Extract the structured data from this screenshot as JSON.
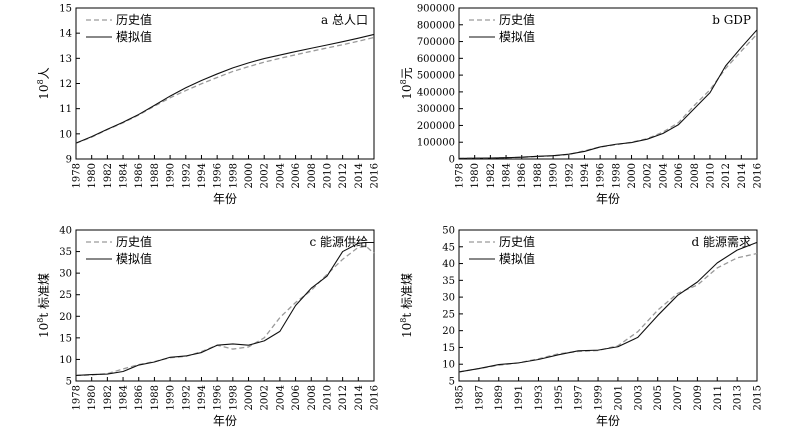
{
  "chart_data": [
    {
      "id": "a",
      "type": "line",
      "title": "a 总人口",
      "xlabel": "年份",
      "ylabel_base": "10",
      "ylabel_sup": "8",
      "ylabel_unit": "人",
      "xlim": [
        1978,
        2016
      ],
      "ylim": [
        9,
        15
      ],
      "xticks": [
        "1978",
        "1980",
        "1982",
        "1984",
        "1986",
        "1988",
        "1990",
        "1992",
        "1994",
        "1996",
        "1998",
        "2000",
        "2002",
        "2004",
        "2006",
        "2008",
        "2010",
        "2012",
        "2014",
        "2016"
      ],
      "yticks": [
        "9",
        "10",
        "11",
        "12",
        "13",
        "14",
        "15"
      ],
      "legend": [
        "历史值",
        "模拟值"
      ],
      "series": [
        {
          "name": "历史值",
          "style": "dashed",
          "x": [
            1978,
            1980,
            1982,
            1984,
            1986,
            1988,
            1990,
            1992,
            1994,
            1996,
            1998,
            2000,
            2002,
            2004,
            2006,
            2008,
            2010,
            2012,
            2014,
            2016
          ],
          "values": [
            9.63,
            9.87,
            10.17,
            10.44,
            10.75,
            11.1,
            11.43,
            11.72,
            11.99,
            12.24,
            12.48,
            12.67,
            12.85,
            13.0,
            13.14,
            13.28,
            13.41,
            13.54,
            13.68,
            13.83
          ]
        },
        {
          "name": "模拟值",
          "style": "solid",
          "x": [
            1978,
            1980,
            1982,
            1984,
            1986,
            1988,
            1990,
            1992,
            1994,
            1996,
            1998,
            2000,
            2002,
            2004,
            2006,
            2008,
            2010,
            2012,
            2014,
            2016
          ],
          "values": [
            9.63,
            9.89,
            10.18,
            10.46,
            10.77,
            11.13,
            11.5,
            11.83,
            12.12,
            12.38,
            12.62,
            12.82,
            12.99,
            13.13,
            13.27,
            13.4,
            13.53,
            13.66,
            13.8,
            13.95
          ]
        }
      ]
    },
    {
      "id": "b",
      "type": "line",
      "title": "b GDP",
      "xlabel": "年份",
      "ylabel_base": "10",
      "ylabel_sup": "8",
      "ylabel_unit": "元",
      "xlim": [
        1978,
        2016
      ],
      "ylim": [
        0,
        900000
      ],
      "xticks": [
        "1978",
        "1980",
        "1982",
        "1984",
        "1986",
        "1988",
        "1990",
        "1992",
        "1994",
        "1996",
        "1998",
        "2000",
        "2002",
        "2004",
        "2006",
        "2008",
        "2010",
        "2012",
        "2014",
        "2016"
      ],
      "yticks": [
        "0",
        "100000",
        "200000",
        "300000",
        "400000",
        "500000",
        "600000",
        "700000",
        "800000",
        "900000"
      ],
      "legend": [
        "历史值",
        "模拟值"
      ],
      "series": [
        {
          "name": "历史值",
          "style": "dashed",
          "x": [
            1978,
            1980,
            1982,
            1984,
            1986,
            1988,
            1990,
            1992,
            1994,
            1996,
            1998,
            2000,
            2002,
            2004,
            2006,
            2008,
            2010,
            2012,
            2014,
            2016
          ],
          "values": [
            3650,
            4550,
            5350,
            7200,
            10300,
            15100,
            18800,
            27200,
            48600,
            71800,
            85000,
            100000,
            121000,
            160000,
            217000,
            319000,
            412000,
            540000,
            643000,
            745000
          ]
        },
        {
          "name": "模拟值",
          "style": "solid",
          "x": [
            1978,
            1980,
            1982,
            1984,
            1986,
            1988,
            1990,
            1992,
            1994,
            1996,
            1998,
            2000,
            2002,
            2004,
            2006,
            2008,
            2010,
            2012,
            2014,
            2016
          ],
          "values": [
            3650,
            4800,
            5800,
            7800,
            11000,
            15800,
            19500,
            28500,
            45000,
            72000,
            88000,
            98000,
            118000,
            152000,
            205000,
            300000,
            395000,
            555000,
            665000,
            770000
          ]
        }
      ]
    },
    {
      "id": "c",
      "type": "line",
      "title": "c 能源供给",
      "xlabel": "年份",
      "ylabel_base": "10",
      "ylabel_sup": "8",
      "ylabel_unit": "t 标准煤",
      "xlim": [
        1978,
        2016
      ],
      "ylim": [
        5,
        40
      ],
      "xticks": [
        "1978",
        "1980",
        "1982",
        "1984",
        "1986",
        "1988",
        "1990",
        "1992",
        "1994",
        "1996",
        "1998",
        "2000",
        "2002",
        "2004",
        "2006",
        "2008",
        "2010",
        "2012",
        "2014",
        "2016"
      ],
      "yticks": [
        "5",
        "10",
        "15",
        "20",
        "25",
        "30",
        "35",
        "40"
      ],
      "legend": [
        "历史值",
        "模拟值"
      ],
      "series": [
        {
          "name": "历史值",
          "style": "dashed",
          "x": [
            1978,
            1980,
            1982,
            1984,
            1986,
            1988,
            1990,
            1992,
            1994,
            1996,
            1998,
            2000,
            2002,
            2004,
            2006,
            2008,
            2010,
            2012,
            2014,
            2015,
            2016
          ],
          "values": [
            6.3,
            6.4,
            6.7,
            7.8,
            8.8,
            9.5,
            10.4,
            10.7,
            11.8,
            13.3,
            12.4,
            12.9,
            15.0,
            19.7,
            23.2,
            26.0,
            29.7,
            33.2,
            36.0,
            36.2,
            34.6
          ]
        },
        {
          "name": "模拟值",
          "style": "solid",
          "x": [
            1978,
            1980,
            1982,
            1984,
            1986,
            1988,
            1990,
            1992,
            1994,
            1996,
            1998,
            2000,
            2002,
            2004,
            2006,
            2008,
            2010,
            2012,
            2014,
            2015,
            2016
          ],
          "values": [
            6.3,
            6.5,
            6.6,
            7.2,
            8.7,
            9.4,
            10.5,
            10.8,
            11.6,
            13.3,
            13.6,
            13.3,
            14.3,
            16.5,
            22.5,
            26.5,
            29.3,
            35.0,
            36.9,
            37.1,
            37.1
          ]
        }
      ]
    },
    {
      "id": "d",
      "type": "line",
      "title": "d 能源需求",
      "xlabel": "年份",
      "ylabel_base": "10",
      "ylabel_sup": "8",
      "ylabel_unit": "t 标准煤",
      "xlim": [
        1985,
        2015
      ],
      "ylim": [
        5,
        50
      ],
      "xticks": [
        "1985",
        "1987",
        "1989",
        "1991",
        "1993",
        "1995",
        "1997",
        "1999",
        "2001",
        "2003",
        "2005",
        "2007",
        "2009",
        "2011",
        "2013",
        "2015"
      ],
      "yticks": [
        "5",
        "10",
        "15",
        "20",
        "25",
        "30",
        "35",
        "40",
        "45",
        "50"
      ],
      "legend": [
        "历史值",
        "模拟值"
      ],
      "series": [
        {
          "name": "历史值",
          "style": "dashed",
          "x": [
            1985,
            1987,
            1989,
            1991,
            1993,
            1995,
            1997,
            1999,
            2001,
            2003,
            2005,
            2007,
            2009,
            2011,
            2013,
            2015
          ],
          "values": [
            7.7,
            8.7,
            9.7,
            10.4,
            11.6,
            13.1,
            13.8,
            14.1,
            15.5,
            19.7,
            26.1,
            31.1,
            33.6,
            38.7,
            41.7,
            43.0
          ]
        },
        {
          "name": "模拟值",
          "style": "solid",
          "x": [
            1985,
            1987,
            1989,
            1991,
            1993,
            1995,
            1997,
            1999,
            2001,
            2003,
            2005,
            2007,
            2009,
            2011,
            2013,
            2015
          ],
          "values": [
            7.7,
            8.7,
            9.9,
            10.4,
            11.4,
            12.8,
            14.0,
            14.2,
            15.2,
            18.0,
            24.5,
            30.5,
            34.5,
            40.2,
            44.0,
            46.3
          ]
        }
      ]
    }
  ]
}
